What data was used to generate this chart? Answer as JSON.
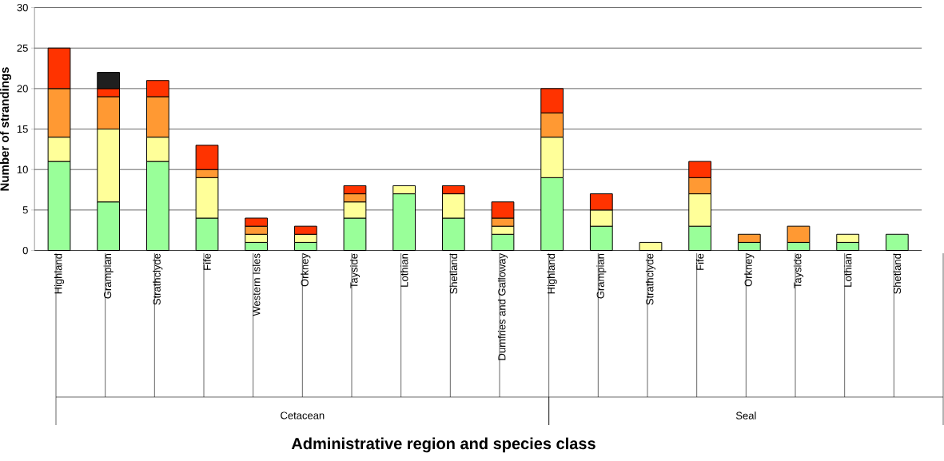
{
  "chart_data": {
    "type": "bar",
    "stacked": true,
    "xlabel": "Administrative region and species class",
    "ylabel": "Number of strandings",
    "categories": [
      "Highland",
      "Grampian",
      "Strathclyde",
      "Fife",
      "Western Isles",
      "Orkney",
      "Tayside",
      "Lothian",
      "Shetland",
      "Dumfries and Galloway",
      "Highland",
      "Grampian",
      "Strathclyde",
      "Fife",
      "Orkney",
      "Tayside",
      "Lothian",
      "Shetland"
    ],
    "series": [
      {
        "color": "#99ff99",
        "values": [
          11,
          6,
          11,
          4,
          1,
          1,
          4,
          7,
          4,
          2,
          9,
          3,
          null,
          3,
          1,
          1,
          1,
          2
        ]
      },
      {
        "color": "#ffff99",
        "values": [
          3,
          9,
          3,
          5,
          1,
          1,
          2,
          1,
          3,
          1,
          5,
          2,
          1,
          4,
          null,
          null,
          1,
          null
        ]
      },
      {
        "color": "#ff9933",
        "values": [
          6,
          4,
          5,
          1,
          1,
          null,
          1,
          null,
          null,
          1,
          3,
          null,
          null,
          2,
          1,
          2,
          null,
          null
        ]
      },
      {
        "color": "#ff3300",
        "values": [
          5,
          1,
          2,
          3,
          1,
          1,
          1,
          null,
          1,
          2,
          3,
          2,
          null,
          2,
          null,
          null,
          null,
          null
        ]
      },
      {
        "color": "#1f1f1f",
        "values": [
          null,
          2,
          null,
          null,
          null,
          null,
          null,
          null,
          null,
          null,
          null,
          null,
          null,
          null,
          null,
          null,
          null,
          null
        ]
      }
    ],
    "annotations": [
      "Cetacean",
      "Seal"
    ],
    "ylim": [
      0,
      30
    ],
    "yticks": [
      0,
      5,
      10,
      15,
      20,
      25,
      30
    ],
    "grid": "y"
  }
}
